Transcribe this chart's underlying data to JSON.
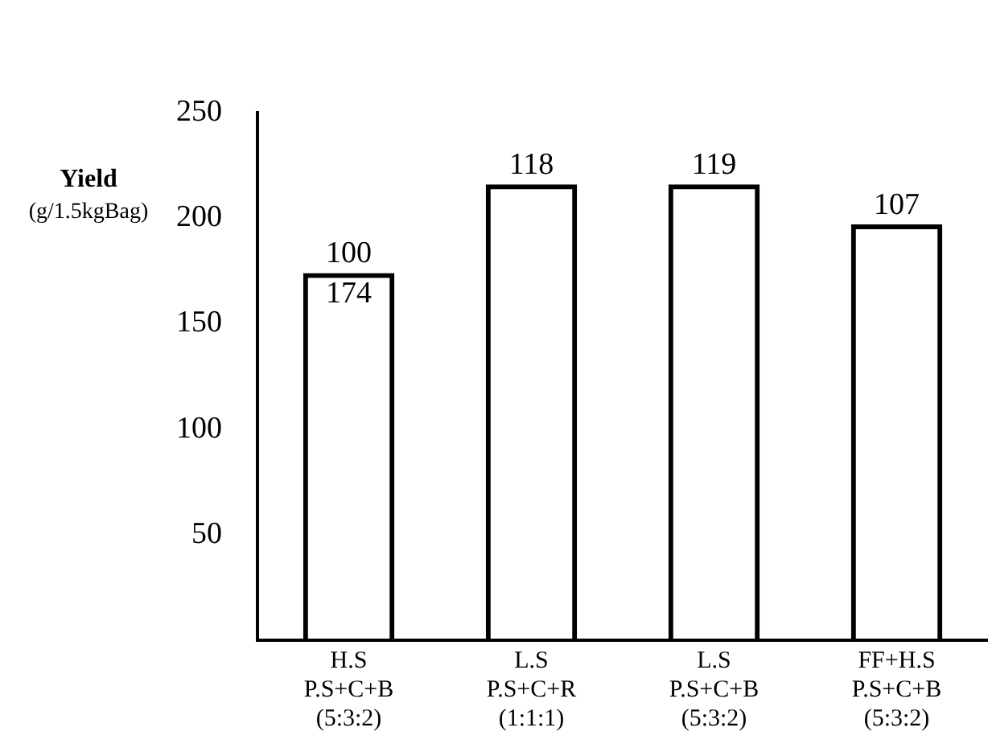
{
  "chart_data": {
    "type": "bar",
    "ylabel": "Yield\n(g/1.5kgBag)",
    "categories": [
      "H.S\nP.S+C+B\n(5:3:2)",
      "L.S\nP.S+C+R\n(1:1:1)",
      "L.S\nP.S+C+B\n(5:3:2)",
      "FF+H.S\nP.S+C+B\n(5:3:2)"
    ],
    "values": [
      174,
      216,
      216,
      197
    ],
    "value_labels": [
      "174",
      null,
      null,
      null
    ],
    "color": "#000000",
    "annotations": [
      {
        "text": "100",
        "x": "H.S\nP.S+C+B\n(5:3:2)",
        "y": 174
      },
      {
        "text": "118",
        "x": "L.S\nP.S+C+R\n(1:1:1)",
        "y": 216
      },
      {
        "text": "119",
        "x": "L.S\nP.S+C+B\n(5:3:2)",
        "y": 216
      },
      {
        "text": "107",
        "x": "FF+H.S\nP.S+C+B\n(5:3:2)",
        "y": 197
      }
    ],
    "ylim": [
      0,
      250
    ],
    "yticks": [
      50,
      100,
      150,
      200,
      250
    ],
    "grid": false,
    "legend": false
  }
}
